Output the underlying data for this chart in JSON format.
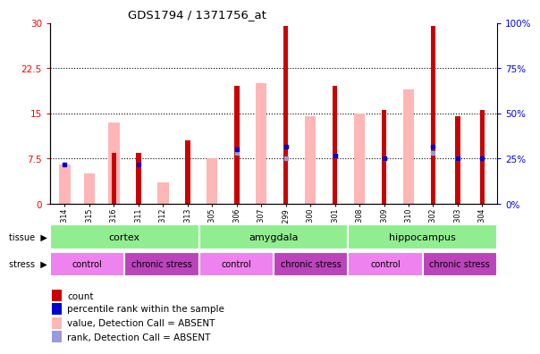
{
  "title": "GDS1794 / 1371756_at",
  "samples": [
    "GSM53314",
    "GSM53315",
    "GSM53316",
    "GSM53311",
    "GSM53312",
    "GSM53313",
    "GSM53305",
    "GSM53306",
    "GSM53307",
    "GSM53299",
    "GSM53300",
    "GSM53301",
    "GSM53308",
    "GSM53309",
    "GSM53310",
    "GSM53302",
    "GSM53303",
    "GSM53304"
  ],
  "count_values": [
    0,
    0,
    8.5,
    8.5,
    0,
    10.5,
    0,
    19.5,
    0,
    29.5,
    0,
    19.5,
    0,
    15.5,
    0,
    29.5,
    14.5,
    15.5
  ],
  "pink_values": [
    6.5,
    5.0,
    13.5,
    0,
    3.5,
    0,
    7.5,
    0,
    20.0,
    0,
    14.5,
    0,
    15.0,
    0,
    19.0,
    0,
    0,
    0
  ],
  "blue_dot_values": [
    6.5,
    0,
    0,
    6.5,
    0,
    0,
    0,
    9.0,
    0,
    9.5,
    0,
    8.0,
    0,
    7.5,
    0,
    9.5,
    7.5,
    7.5
  ],
  "light_blue_values": [
    0,
    0,
    0,
    0,
    0,
    0,
    0,
    8.5,
    0,
    7.5,
    0,
    8.0,
    0,
    7.5,
    0,
    8.5,
    7.5,
    0
  ],
  "ylim_left": [
    0,
    30
  ],
  "ylim_right": [
    0,
    100
  ],
  "yticks_left": [
    0,
    7.5,
    15,
    22.5,
    30
  ],
  "yticks_right": [
    0,
    25,
    50,
    75,
    100
  ],
  "ytick_labels_left": [
    "0",
    "7.5",
    "15",
    "22.5",
    "30"
  ],
  "ytick_labels_right": [
    "0%",
    "25%",
    "50%",
    "75%",
    "100%"
  ],
  "tissue_groups": [
    {
      "label": "cortex",
      "start": 0,
      "end": 6
    },
    {
      "label": "amygdala",
      "start": 6,
      "end": 12
    },
    {
      "label": "hippocampus",
      "start": 12,
      "end": 18
    }
  ],
  "stress_groups": [
    {
      "label": "control",
      "start": 0,
      "end": 3,
      "color": "#ee82ee"
    },
    {
      "label": "chronic stress",
      "start": 3,
      "end": 6,
      "color": "#bb44bb"
    },
    {
      "label": "control",
      "start": 6,
      "end": 9,
      "color": "#ee82ee"
    },
    {
      "label": "chronic stress",
      "start": 9,
      "end": 12,
      "color": "#bb44bb"
    },
    {
      "label": "control",
      "start": 12,
      "end": 15,
      "color": "#ee82ee"
    },
    {
      "label": "chronic stress",
      "start": 15,
      "end": 18,
      "color": "#bb44bb"
    }
  ],
  "tissue_color": "#90ee90",
  "bar_width": 0.45,
  "count_color": "#cc0000",
  "pink_color": "#ffb6b6",
  "blue_color": "#0000cc",
  "light_blue_color": "#9999dd",
  "grid_values": [
    7.5,
    15,
    22.5
  ],
  "legend_items": [
    {
      "color": "#cc0000",
      "label": "count"
    },
    {
      "color": "#0000cc",
      "label": "percentile rank within the sample"
    },
    {
      "color": "#ffb6b6",
      "label": "value, Detection Call = ABSENT"
    },
    {
      "color": "#9999dd",
      "label": "rank, Detection Call = ABSENT"
    }
  ]
}
